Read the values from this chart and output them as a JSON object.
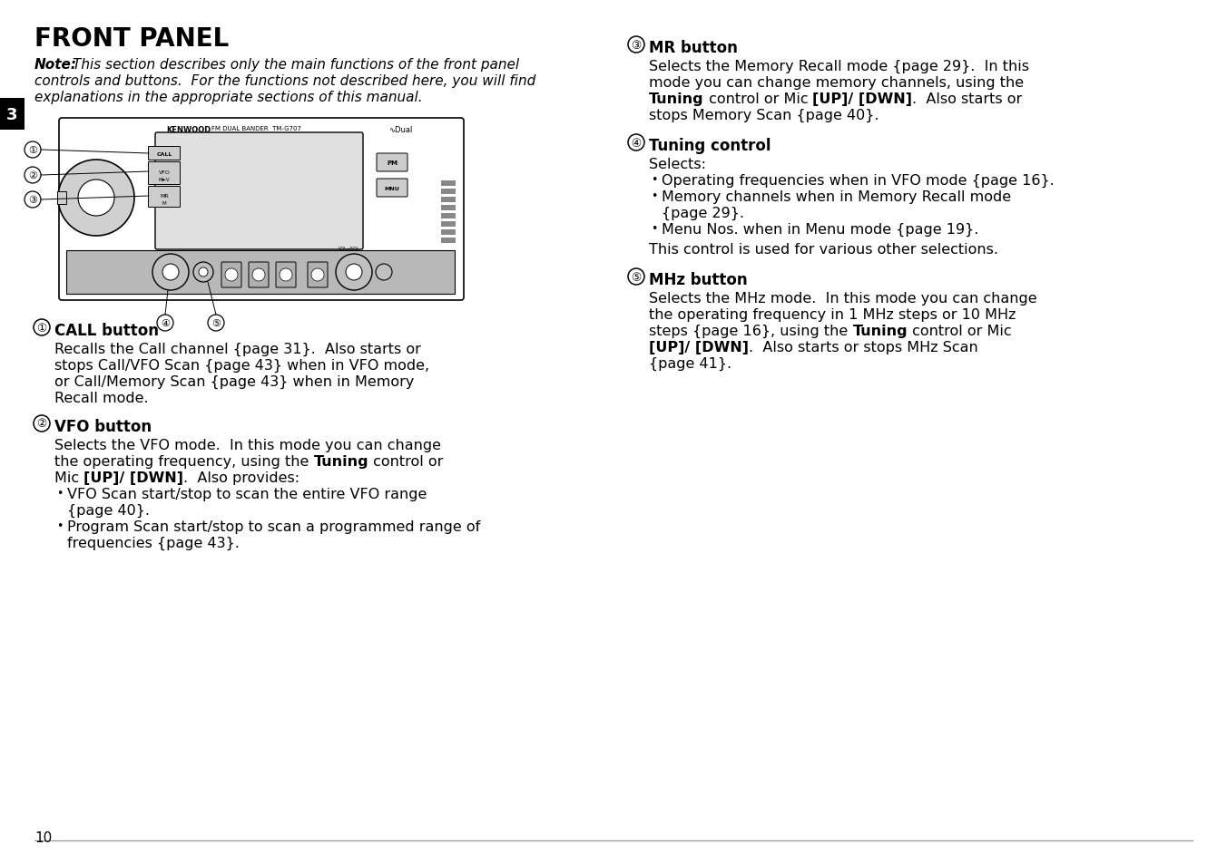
{
  "bg_color": "#ffffff",
  "text_color": "#000000",
  "page_number": "10",
  "section_tab": "3",
  "title": "FRONT PANEL",
  "note_label": "Note:",
  "note_body": "This section describes only the main functions of the front panel\ncontrols and buttons.  For the functions not described here, you will find\nexplanations in the appropriate sections of this manual.",
  "left_sections": [
    {
      "num": "1",
      "heading": "CALL button",
      "lines": [
        [
          {
            "t": "Recalls the Call channel {page 31}.  Also starts or",
            "b": false
          }
        ],
        [
          {
            "t": "stops Call/VFO Scan {page 43} when in VFO mode,",
            "b": false
          }
        ],
        [
          {
            "t": "or Call/Memory Scan {page 43} when in Memory",
            "b": false
          }
        ],
        [
          {
            "t": "Recall mode.",
            "b": false
          }
        ]
      ]
    },
    {
      "num": "2",
      "heading": "VFO button",
      "lines": [
        [
          {
            "t": "Selects the VFO mode.  In this mode you can change",
            "b": false
          }
        ],
        [
          {
            "t": "the operating frequency, using the ",
            "b": false
          },
          {
            "t": "Tuning",
            "b": true
          },
          {
            "t": " control or",
            "b": false
          }
        ],
        [
          {
            "t": "Mic ",
            "b": false
          },
          {
            "t": "[UP]/ [DWN]",
            "b": true
          },
          {
            "t": ".  Also provides:",
            "b": false
          }
        ]
      ],
      "bullets": [
        [
          [
            {
              "t": "VFO Scan start/stop to scan the entire VFO range",
              "b": false
            }
          ],
          [
            {
              "t": "{page 40}.",
              "b": false
            }
          ]
        ],
        [
          [
            {
              "t": "Program Scan start/stop to scan a programmed range of",
              "b": false
            }
          ],
          [
            {
              "t": "frequencies {page 43}.",
              "b": false
            }
          ]
        ]
      ]
    }
  ],
  "right_sections": [
    {
      "num": "3",
      "heading": "MR button",
      "lines": [
        [
          {
            "t": "Selects the Memory Recall mode {page 29}.  In this",
            "b": false
          }
        ],
        [
          {
            "t": "mode you can change memory channels, using the",
            "b": false
          }
        ],
        [
          {
            "t": "Tuning",
            "b": true
          },
          {
            "t": " control or Mic ",
            "b": false
          },
          {
            "t": "[UP]/ [DWN]",
            "b": true
          },
          {
            "t": ".  Also starts or",
            "b": false
          }
        ],
        [
          {
            "t": "stops Memory Scan {page 40}.",
            "b": false
          }
        ]
      ]
    },
    {
      "num": "4",
      "heading": "Tuning control",
      "intro": "Selects:",
      "bullets": [
        [
          [
            {
              "t": "Operating frequencies when in VFO mode {page 16}.",
              "b": false
            }
          ]
        ],
        [
          [
            {
              "t": "Memory channels when in Memory Recall mode",
              "b": false
            }
          ],
          [
            {
              "t": "{page 29}.",
              "b": false
            }
          ]
        ],
        [
          [
            {
              "t": "Menu Nos. when in Menu mode {page 19}.",
              "b": false
            }
          ]
        ]
      ],
      "footer": "This control is used for various other selections."
    },
    {
      "num": "5",
      "heading": "MHz button",
      "lines": [
        [
          {
            "t": "Selects the MHz mode.  In this mode you can change",
            "b": false
          }
        ],
        [
          {
            "t": "the operating frequency in 1 MHz steps or 10 MHz",
            "b": false
          }
        ],
        [
          {
            "t": "steps {page 16}, using the ",
            "b": false
          },
          {
            "t": "Tuning",
            "b": true
          },
          {
            "t": " control or Mic",
            "b": false
          }
        ],
        [
          {
            "t": "[UP]/ [DWN]",
            "b": true
          },
          {
            "t": ".  Also starts or stops MHz Scan",
            "b": false
          }
        ],
        [
          {
            "t": "{page 41}.",
            "b": false
          }
        ]
      ]
    }
  ]
}
